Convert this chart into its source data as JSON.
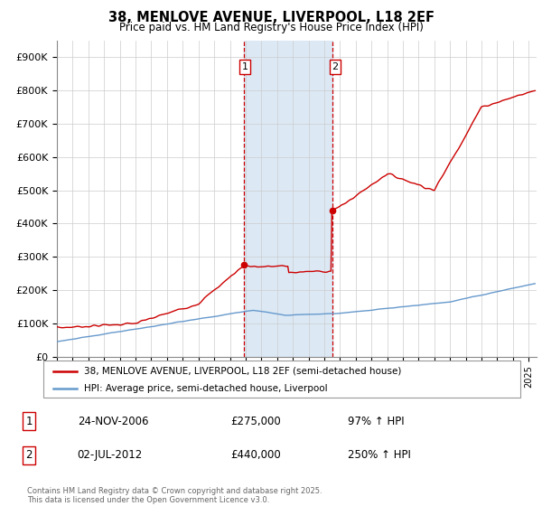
{
  "title": "38, MENLOVE AVENUE, LIVERPOOL, L18 2EF",
  "subtitle": "Price paid vs. HM Land Registry's House Price Index (HPI)",
  "ylim": [
    0,
    950000
  ],
  "xlim_start": 1995.0,
  "xlim_end": 2025.5,
  "transaction1_date": 2006.9,
  "transaction1_price": 275000,
  "transaction2_date": 2012.5,
  "transaction2_price": 440000,
  "shade_color": "#dce9f5",
  "vline_color": "#cc0000",
  "legend_line1": "38, MENLOVE AVENUE, LIVERPOOL, L18 2EF (semi-detached house)",
  "legend_line2": "HPI: Average price, semi-detached house, Liverpool",
  "table_row1_num": "1",
  "table_row1_date": "24-NOV-2006",
  "table_row1_price": "£275,000",
  "table_row1_hpi": "97% ↑ HPI",
  "table_row2_num": "2",
  "table_row2_date": "02-JUL-2012",
  "table_row2_price": "£440,000",
  "table_row2_hpi": "250% ↑ HPI",
  "footer": "Contains HM Land Registry data © Crown copyright and database right 2025.\nThis data is licensed under the Open Government Licence v3.0.",
  "red_color": "#cc0000",
  "blue_color": "#6699cc",
  "grid_color": "#cccccc"
}
